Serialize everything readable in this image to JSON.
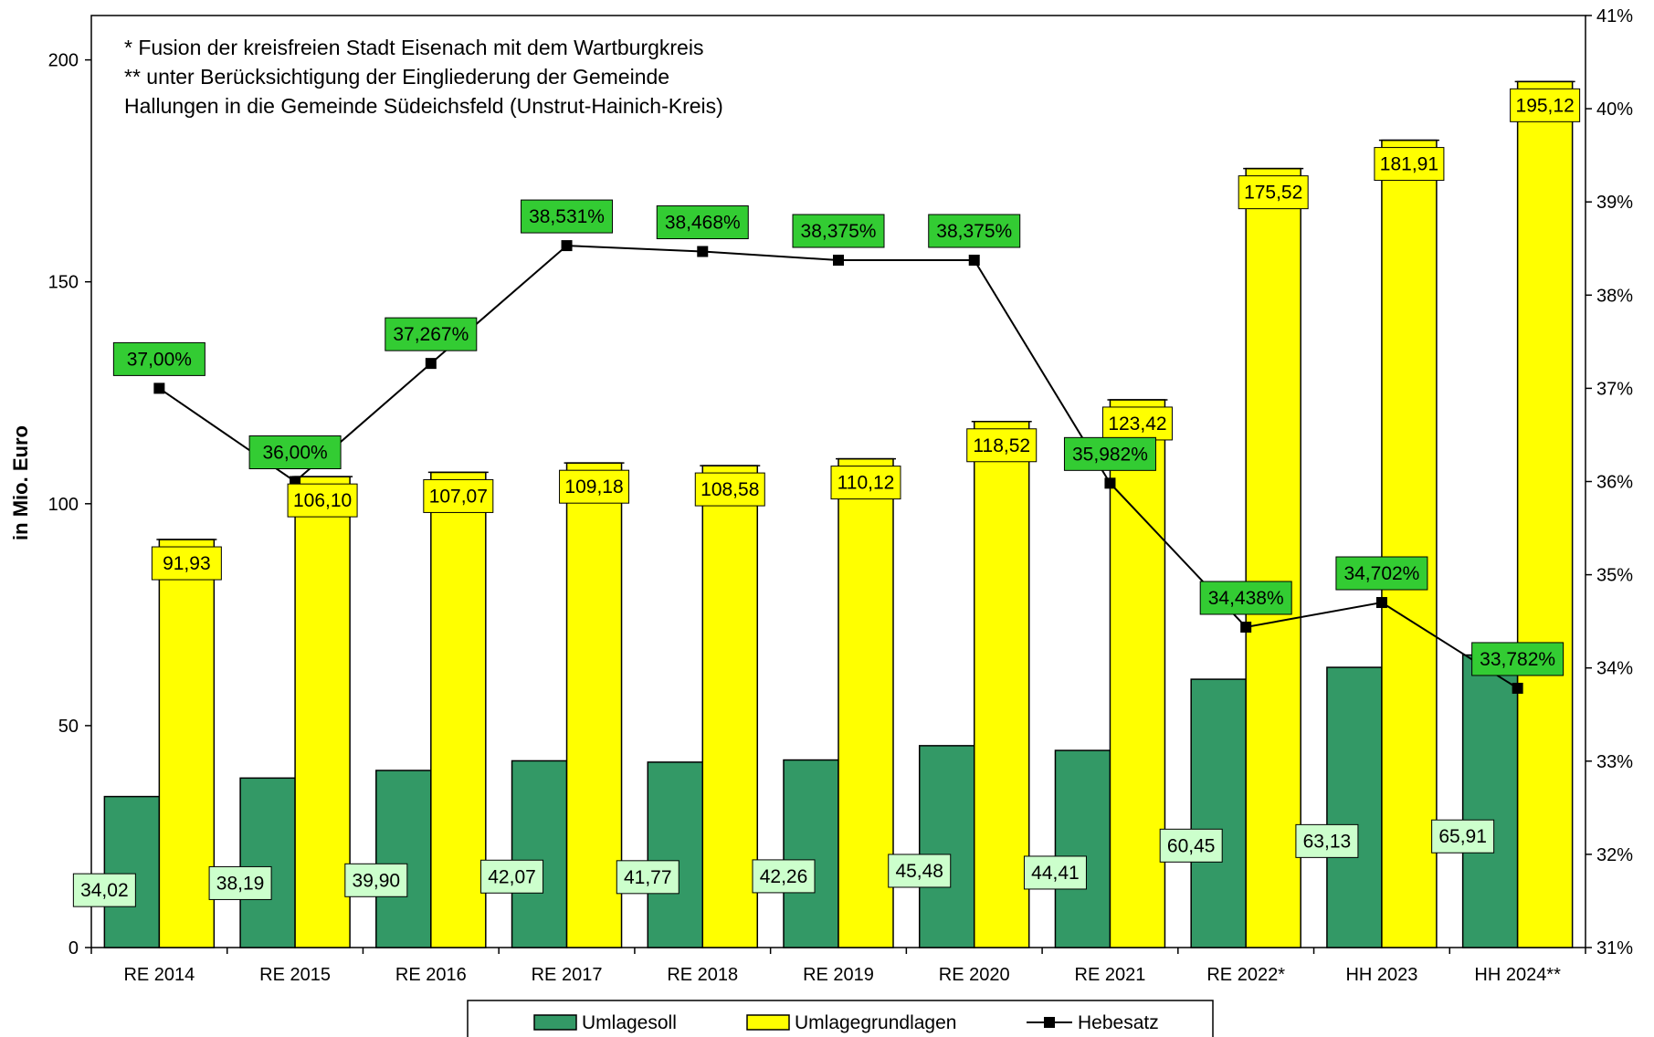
{
  "chart_data": {
    "type": "bar",
    "notes": [
      "* Fusion der kreisfreien Stadt Eisenach mit dem Wartburgkreis",
      "** unter Berücksichtigung der Eingliederung der Gemeinde",
      "Hallungen in die Gemeinde Südeichsfeld (Unstrut-Hainich-Kreis)"
    ],
    "ylabel": "in Mio. Euro",
    "ylim": [
      0,
      210
    ],
    "yticks": [
      0,
      50,
      100,
      150,
      200
    ],
    "y2lim": [
      31,
      41
    ],
    "y2ticks": [
      "31%",
      "32%",
      "33%",
      "34%",
      "35%",
      "36%",
      "37%",
      "38%",
      "39%",
      "40%",
      "41%"
    ],
    "categories": [
      "RE 2014",
      "RE 2015",
      "RE 2016",
      "RE 2017",
      "RE 2018",
      "RE 2019",
      "RE 2020",
      "RE 2021",
      "RE 2022*",
      "HH 2023",
      "HH 2024**"
    ],
    "series": [
      {
        "name": "Umlagesoll",
        "type": "bar",
        "color": "#339966",
        "label_bg": "#ccffcc",
        "values": [
          34.02,
          38.19,
          39.9,
          42.07,
          41.77,
          42.26,
          45.48,
          44.41,
          60.45,
          63.13,
          65.91
        ],
        "labels": [
          "34,02",
          "38,19",
          "39,90",
          "42,07",
          "41,77",
          "42,26",
          "45,48",
          "44,41",
          "60,45",
          "63,13",
          "65,91"
        ]
      },
      {
        "name": "Umlagegrundlagen",
        "type": "bar",
        "color": "#ffff00",
        "label_bg": "#ffff00",
        "values": [
          91.93,
          106.1,
          107.07,
          109.18,
          108.58,
          110.12,
          118.52,
          123.42,
          175.52,
          181.91,
          195.12
        ],
        "labels": [
          "91,93",
          "106,10",
          "107,07",
          "109,18",
          "108,58",
          "110,12",
          "118,52",
          "123,42",
          "175,52",
          "181,91",
          "195,12"
        ]
      },
      {
        "name": "Hebesatz",
        "type": "line",
        "axis": "right",
        "color": "#000000",
        "label_bg": "#33cc33",
        "values": [
          37.0,
          36.0,
          37.267,
          38.531,
          38.468,
          38.375,
          38.375,
          35.982,
          34.438,
          34.702,
          33.782
        ],
        "labels": [
          "37,00%",
          "36,00%",
          "37,267%",
          "38,531%",
          "38,468%",
          "38,375%",
          "38,375%",
          "35,982%",
          "34,438%",
          "34,702%",
          "33,782%"
        ]
      }
    ],
    "legend_position": "bottom",
    "grid": false
  }
}
